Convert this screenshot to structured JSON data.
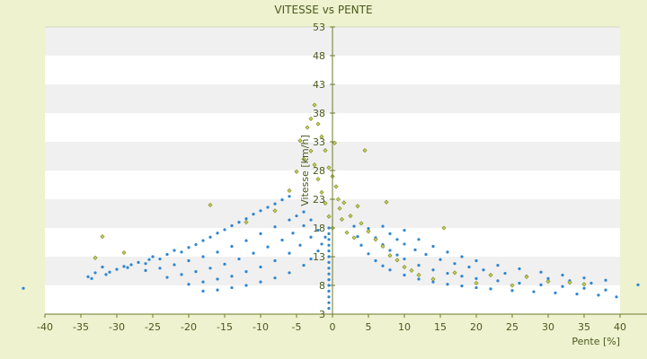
{
  "chart_data": {
    "type": "scatter",
    "title": "VITESSE vs PENTE",
    "xlabel": "Pente [%]",
    "ylabel": "Vitesse [km/h]",
    "xlim": [
      -40,
      40
    ],
    "ylim": [
      3,
      53
    ],
    "x_ticks": [
      -40,
      -35,
      -30,
      -25,
      -20,
      -15,
      -10,
      -5,
      0,
      5,
      10,
      15,
      20,
      25,
      30,
      35,
      40
    ],
    "y_ticks": [
      3,
      8,
      13,
      18,
      23,
      28,
      33,
      38,
      43,
      48,
      53
    ],
    "grid": "horizontal-bands",
    "legend": "none",
    "colors": {
      "background": "#eef2cf",
      "plot_band_light": "#ffffff",
      "plot_band_dark": "#f0f0f0",
      "series_blue": "#2e86d1",
      "series_olive": "#9aa52a",
      "axis": "#6d7a2f"
    },
    "series": [
      {
        "color": "#2e86d1",
        "points": [
          [
            -43.0,
            7.5
          ],
          [
            -34.0,
            9.5
          ],
          [
            -33.5,
            9.2
          ],
          [
            -33.0,
            10.2
          ],
          [
            -32.0,
            11.2
          ],
          [
            -31.5,
            9.9
          ],
          [
            -31.0,
            10.3
          ],
          [
            -30.0,
            10.8
          ],
          [
            -29.0,
            11.3
          ],
          [
            -28.5,
            11.1
          ],
          [
            -28.0,
            11.6
          ],
          [
            -27.0,
            12.0
          ],
          [
            -26.0,
            11.8
          ],
          [
            -25.5,
            12.5
          ],
          [
            -25.0,
            13.0
          ],
          [
            -24.0,
            12.6
          ],
          [
            -23.0,
            13.4
          ],
          [
            -22.0,
            14.1
          ],
          [
            -21.0,
            13.8
          ],
          [
            -20.0,
            14.6
          ],
          [
            -19.0,
            15.1
          ],
          [
            -18.0,
            15.8
          ],
          [
            -17.0,
            16.4
          ],
          [
            -16.0,
            17.1
          ],
          [
            -15.0,
            17.7
          ],
          [
            -14.0,
            18.4
          ],
          [
            -13.0,
            19.0
          ],
          [
            -12.0,
            19.6
          ],
          [
            -11.0,
            20.4
          ],
          [
            -10.0,
            21.0
          ],
          [
            -9.0,
            21.6
          ],
          [
            -8.0,
            22.2
          ],
          [
            -7.0,
            22.9
          ],
          [
            -6.0,
            23.5
          ],
          [
            -26.0,
            10.6
          ],
          [
            -24.0,
            11.0
          ],
          [
            -22.0,
            11.6
          ],
          [
            -20.0,
            12.3
          ],
          [
            -18.0,
            13.0
          ],
          [
            -16.0,
            13.8
          ],
          [
            -14.0,
            14.8
          ],
          [
            -12.0,
            15.8
          ],
          [
            -10.0,
            17.0
          ],
          [
            -8.0,
            18.2
          ],
          [
            -6.0,
            19.4
          ],
          [
            -5.0,
            20.1
          ],
          [
            -4.0,
            20.8
          ],
          [
            -23.0,
            9.4
          ],
          [
            -21.0,
            9.9
          ],
          [
            -19.0,
            10.4
          ],
          [
            -17.0,
            11.0
          ],
          [
            -15.0,
            11.7
          ],
          [
            -13.0,
            12.6
          ],
          [
            -11.0,
            13.6
          ],
          [
            -9.0,
            14.7
          ],
          [
            -7.0,
            15.9
          ],
          [
            -5.5,
            17.1
          ],
          [
            -4.0,
            18.4
          ],
          [
            -3.0,
            19.4
          ],
          [
            -20.0,
            8.2
          ],
          [
            -18.0,
            8.6
          ],
          [
            -16.0,
            9.1
          ],
          [
            -14.0,
            9.6
          ],
          [
            -12.0,
            10.4
          ],
          [
            -10.0,
            11.2
          ],
          [
            -8.0,
            12.3
          ],
          [
            -6.0,
            13.6
          ],
          [
            -4.5,
            15.0
          ],
          [
            -3.0,
            16.4
          ],
          [
            -2.0,
            17.6
          ],
          [
            -18.0,
            7.0
          ],
          [
            -16.0,
            7.2
          ],
          [
            -14.0,
            7.6
          ],
          [
            -12.0,
            8.0
          ],
          [
            -10.0,
            8.6
          ],
          [
            -8.0,
            9.3
          ],
          [
            -6.0,
            10.2
          ],
          [
            -4.0,
            11.5
          ],
          [
            -3.0,
            12.6
          ],
          [
            -2.0,
            14.0
          ],
          [
            -1.5,
            15.2
          ],
          [
            -1.0,
            16.4
          ],
          [
            -0.5,
            4.0
          ],
          [
            -0.5,
            5.0
          ],
          [
            -0.5,
            6.0
          ],
          [
            -0.5,
            7.0
          ],
          [
            -0.5,
            8.0
          ],
          [
            -0.5,
            9.0
          ],
          [
            -0.5,
            10.0
          ],
          [
            -0.5,
            11.0
          ],
          [
            -0.5,
            12.0
          ],
          [
            -0.5,
            13.0
          ],
          [
            -0.5,
            14.0
          ],
          [
            -0.5,
            15.0
          ],
          [
            -0.5,
            16.0
          ],
          [
            -0.5,
            17.0
          ],
          [
            -0.5,
            18.0
          ],
          [
            3.0,
            18.3
          ],
          [
            3.5,
            16.5
          ],
          [
            4.0,
            15.0
          ],
          [
            5.0,
            13.5
          ],
          [
            6.0,
            12.3
          ],
          [
            7.0,
            11.4
          ],
          [
            8.0,
            10.7
          ],
          [
            10.0,
            9.8
          ],
          [
            12.0,
            9.1
          ],
          [
            14.0,
            8.6
          ],
          [
            16.0,
            8.2
          ],
          [
            18.0,
            7.9
          ],
          [
            20.0,
            7.6
          ],
          [
            22.0,
            7.4
          ],
          [
            25.0,
            7.1
          ],
          [
            28.0,
            6.9
          ],
          [
            31.0,
            6.7
          ],
          [
            34.0,
            6.5
          ],
          [
            37.0,
            6.3
          ],
          [
            39.5,
            6.0
          ],
          [
            5.0,
            17.9
          ],
          [
            6.0,
            16.3
          ],
          [
            7.0,
            15.1
          ],
          [
            8.0,
            14.1
          ],
          [
            9.0,
            13.3
          ],
          [
            10.0,
            12.6
          ],
          [
            12.0,
            11.5
          ],
          [
            14.0,
            10.7
          ],
          [
            16.0,
            10.1
          ],
          [
            18.0,
            9.6
          ],
          [
            20.0,
            9.2
          ],
          [
            23.0,
            8.8
          ],
          [
            26.0,
            8.4
          ],
          [
            29.0,
            8.1
          ],
          [
            32.0,
            7.8
          ],
          [
            35.0,
            7.5
          ],
          [
            38.0,
            7.2
          ],
          [
            7.0,
            18.3
          ],
          [
            8.0,
            17.0
          ],
          [
            9.0,
            16.0
          ],
          [
            10.0,
            15.2
          ],
          [
            11.5,
            14.2
          ],
          [
            13.0,
            13.4
          ],
          [
            15.0,
            12.5
          ],
          [
            17.0,
            11.8
          ],
          [
            19.0,
            11.2
          ],
          [
            21.0,
            10.7
          ],
          [
            24.0,
            10.1
          ],
          [
            27.0,
            9.6
          ],
          [
            30.0,
            9.2
          ],
          [
            33.0,
            8.8
          ],
          [
            36.0,
            8.4
          ],
          [
            10.0,
            17.6
          ],
          [
            12.0,
            16.0
          ],
          [
            14.0,
            14.8
          ],
          [
            16.0,
            13.8
          ],
          [
            18.0,
            13.0
          ],
          [
            20.0,
            12.3
          ],
          [
            23.0,
            11.5
          ],
          [
            26.0,
            10.9
          ],
          [
            29.0,
            10.3
          ],
          [
            32.0,
            9.8
          ],
          [
            35.0,
            9.3
          ],
          [
            38.0,
            8.9
          ],
          [
            42.5,
            8.1
          ]
        ]
      },
      {
        "color": "#9aa52a",
        "points": [
          [
            -33.0,
            12.8
          ],
          [
            -32.0,
            16.5
          ],
          [
            -29.0,
            13.7
          ],
          [
            -17.0,
            22.0
          ],
          [
            -12.0,
            19.0
          ],
          [
            -8.0,
            21.0
          ],
          [
            -6.0,
            24.5
          ],
          [
            -5.0,
            27.8
          ],
          [
            -4.5,
            33.2
          ],
          [
            -4.0,
            30.0
          ],
          [
            -3.5,
            35.5
          ],
          [
            -3.0,
            37.0
          ],
          [
            -3.0,
            31.4
          ],
          [
            -2.5,
            39.4
          ],
          [
            -2.5,
            29.0
          ],
          [
            -2.0,
            36.1
          ],
          [
            -2.0,
            26.5
          ],
          [
            -1.5,
            33.9
          ],
          [
            -1.5,
            24.2
          ],
          [
            -1.0,
            31.5
          ],
          [
            -1.0,
            22.3
          ],
          [
            -0.5,
            28.5
          ],
          [
            -0.5,
            20.0
          ],
          [
            0.0,
            27.0
          ],
          [
            0.0,
            18.0
          ],
          [
            0.3,
            32.8
          ],
          [
            0.5,
            25.2
          ],
          [
            0.8,
            23.0
          ],
          [
            1.0,
            21.4
          ],
          [
            1.3,
            19.5
          ],
          [
            1.6,
            22.4
          ],
          [
            2.0,
            17.2
          ],
          [
            2.5,
            20.1
          ],
          [
            3.0,
            16.3
          ],
          [
            3.5,
            21.8
          ],
          [
            4.5,
            31.5
          ],
          [
            4.0,
            18.8
          ],
          [
            5.0,
            17.4
          ],
          [
            6.0,
            16.0
          ],
          [
            7.0,
            14.8
          ],
          [
            7.5,
            22.5
          ],
          [
            8.0,
            13.2
          ],
          [
            9.0,
            12.4
          ],
          [
            10.0,
            11.2
          ],
          [
            11.0,
            10.6
          ],
          [
            12.0,
            9.8
          ],
          [
            14.0,
            9.1
          ],
          [
            15.5,
            18.0
          ],
          [
            17.0,
            10.2
          ],
          [
            20.0,
            8.4
          ],
          [
            22.0,
            9.8
          ],
          [
            25.0,
            8.0
          ],
          [
            27.0,
            9.5
          ],
          [
            30.0,
            8.7
          ],
          [
            33.0,
            8.5
          ],
          [
            35.0,
            8.2
          ]
        ]
      }
    ]
  }
}
